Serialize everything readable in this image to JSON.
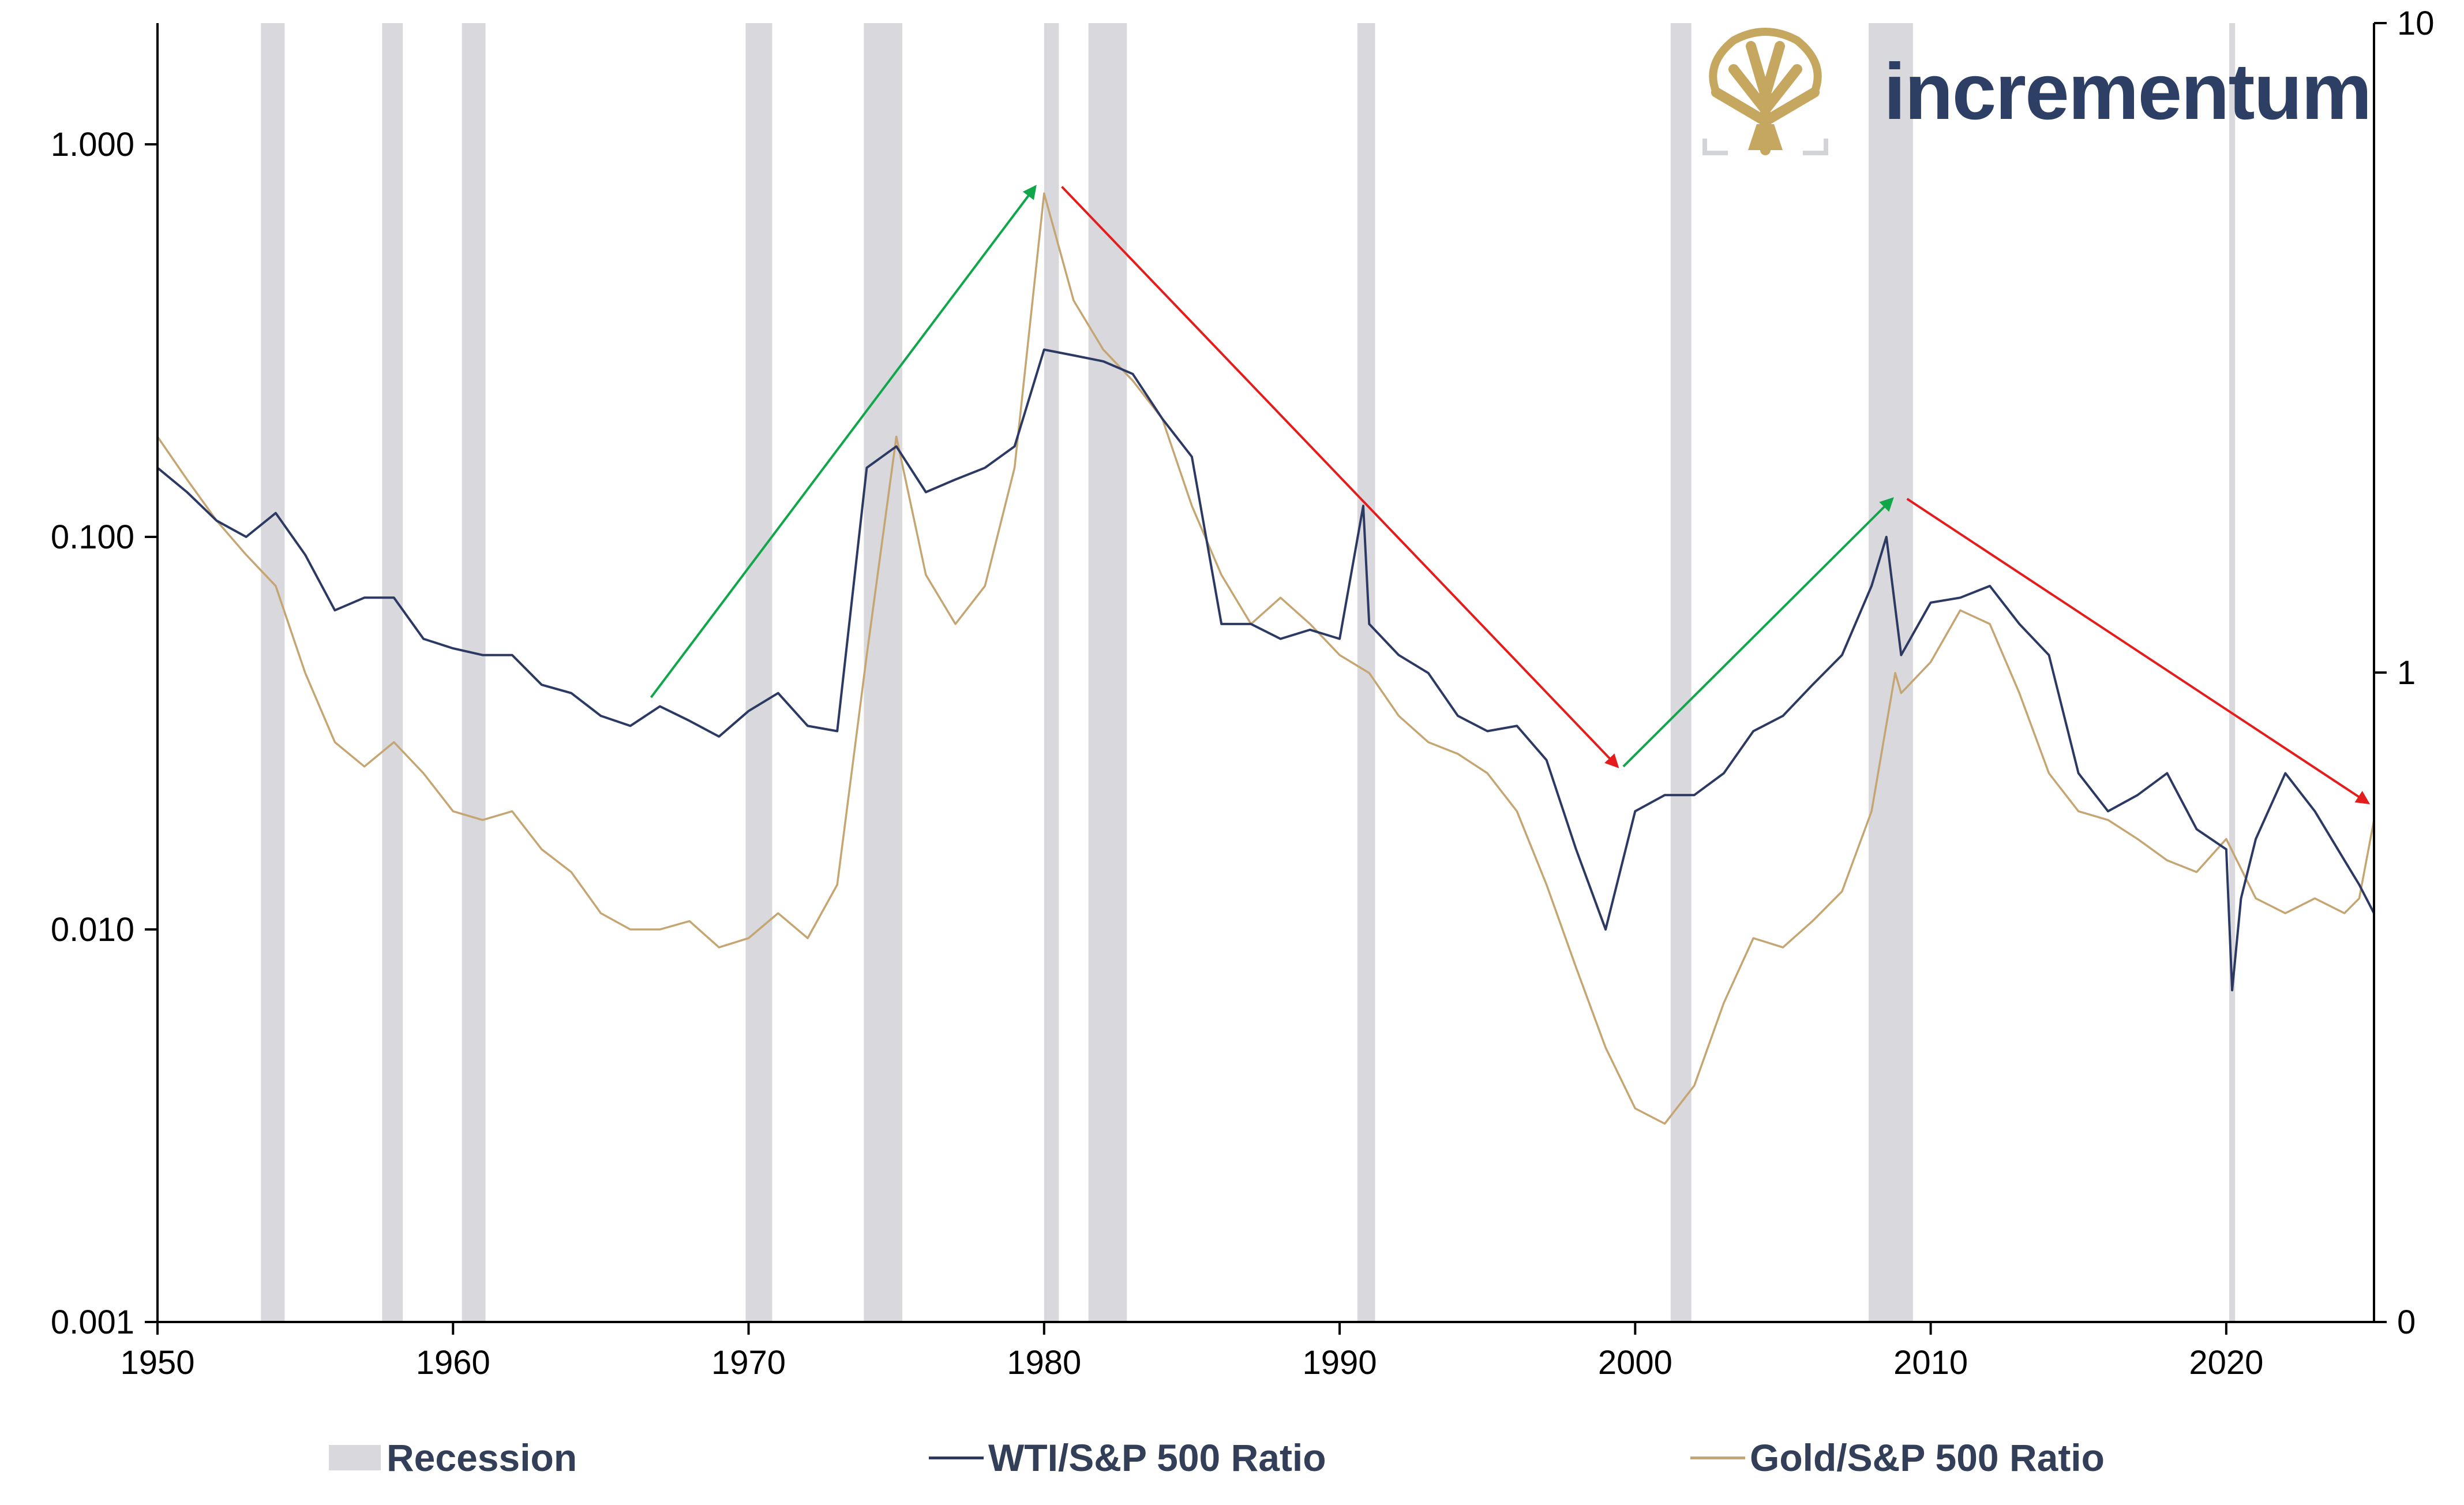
{
  "logo": {
    "text": "incrementum",
    "icon": "tree-icon"
  },
  "legend": {
    "recession": "Recession",
    "wti": "WTI/S&P 500 Ratio",
    "gold": "Gold/S&P 500 Ratio"
  },
  "colors": {
    "wti": "#2b3963",
    "gold": "#c5a572",
    "recession": "#d9d8dc",
    "up_arrow": "#10a64a",
    "down_arrow": "#e51c1c",
    "brand_gold": "#c6a760",
    "brand_navy": "#2e3f66"
  },
  "chart_data": {
    "type": "line",
    "x_axis": {
      "range": [
        1950,
        2025
      ],
      "tick_labels": [
        "1950",
        "1960",
        "1970",
        "1980",
        "1990",
        "2000",
        "2010",
        "2020"
      ]
    },
    "y_left": {
      "scale": "log",
      "range": [
        0.001,
        2
      ],
      "tick_labels": [
        "0.001",
        "0.010",
        "0.100",
        "1.000"
      ]
    },
    "y_right": {
      "scale": "log",
      "tick_labels": [
        "0",
        "1",
        "10"
      ]
    },
    "grid": false,
    "legend_position": "bottom",
    "recessions": [
      [
        1953.5,
        1954.3
      ],
      [
        1957.6,
        1958.3
      ],
      [
        1960.3,
        1961.1
      ],
      [
        1969.9,
        1970.8
      ],
      [
        1973.9,
        1975.2
      ],
      [
        1980.0,
        1980.5
      ],
      [
        1981.5,
        1982.8
      ],
      [
        1990.6,
        1991.2
      ],
      [
        2001.2,
        2001.9
      ],
      [
        2007.9,
        2009.4
      ],
      [
        2020.1,
        2020.3
      ]
    ],
    "series": [
      {
        "name": "WTI/S&P 500 Ratio",
        "axis": "left",
        "points": [
          [
            1950,
            0.15
          ],
          [
            1951,
            0.13
          ],
          [
            1952,
            0.11
          ],
          [
            1953,
            0.1
          ],
          [
            1954,
            0.115
          ],
          [
            1955,
            0.09
          ],
          [
            1956,
            0.065
          ],
          [
            1957,
            0.07
          ],
          [
            1958,
            0.07
          ],
          [
            1959,
            0.055
          ],
          [
            1960,
            0.052
          ],
          [
            1961,
            0.05
          ],
          [
            1962,
            0.05
          ],
          [
            1963,
            0.042
          ],
          [
            1964,
            0.04
          ],
          [
            1965,
            0.035
          ],
          [
            1966,
            0.033
          ],
          [
            1967,
            0.037
          ],
          [
            1968,
            0.034
          ],
          [
            1969,
            0.031
          ],
          [
            1970,
            0.036
          ],
          [
            1971,
            0.04
          ],
          [
            1972,
            0.033
          ],
          [
            1973,
            0.032
          ],
          [
            1974,
            0.15
          ],
          [
            1975,
            0.17
          ],
          [
            1976,
            0.13
          ],
          [
            1977,
            0.14
          ],
          [
            1978,
            0.15
          ],
          [
            1979,
            0.17
          ],
          [
            1980,
            0.3
          ],
          [
            1981,
            0.29
          ],
          [
            1982,
            0.28
          ],
          [
            1983,
            0.26
          ],
          [
            1984,
            0.2
          ],
          [
            1985,
            0.16
          ],
          [
            1986,
            0.06
          ],
          [
            1987,
            0.06
          ],
          [
            1988,
            0.055
          ],
          [
            1989,
            0.058
          ],
          [
            1990,
            0.055
          ],
          [
            1990.8,
            0.12
          ],
          [
            1991,
            0.06
          ],
          [
            1992,
            0.05
          ],
          [
            1993,
            0.045
          ],
          [
            1994,
            0.035
          ],
          [
            1995,
            0.032
          ],
          [
            1996,
            0.033
          ],
          [
            1997,
            0.027
          ],
          [
            1998,
            0.016
          ],
          [
            1999,
            0.01
          ],
          [
            2000,
            0.02
          ],
          [
            2001,
            0.022
          ],
          [
            2002,
            0.022
          ],
          [
            2003,
            0.025
          ],
          [
            2004,
            0.032
          ],
          [
            2005,
            0.035
          ],
          [
            2006,
            0.042
          ],
          [
            2007,
            0.05
          ],
          [
            2008,
            0.075
          ],
          [
            2008.5,
            0.1
          ],
          [
            2009,
            0.05
          ],
          [
            2010,
            0.068
          ],
          [
            2011,
            0.07
          ],
          [
            2012,
            0.075
          ],
          [
            2013,
            0.06
          ],
          [
            2014,
            0.05
          ],
          [
            2015,
            0.025
          ],
          [
            2016,
            0.02
          ],
          [
            2017,
            0.022
          ],
          [
            2018,
            0.025
          ],
          [
            2019,
            0.018
          ],
          [
            2020,
            0.016
          ],
          [
            2020.2,
            0.007
          ],
          [
            2020.5,
            0.012
          ],
          [
            2021,
            0.017
          ],
          [
            2022,
            0.025
          ],
          [
            2023,
            0.02
          ],
          [
            2024,
            0.015
          ],
          [
            2024.5,
            0.013
          ],
          [
            2025,
            0.011
          ]
        ]
      },
      {
        "name": "Gold/S&P 500 Ratio",
        "axis": "left",
        "points": [
          [
            1950,
            0.18
          ],
          [
            1951,
            0.14
          ],
          [
            1952,
            0.11
          ],
          [
            1953,
            0.09
          ],
          [
            1954,
            0.075
          ],
          [
            1955,
            0.045
          ],
          [
            1956,
            0.03
          ],
          [
            1957,
            0.026
          ],
          [
            1958,
            0.03
          ],
          [
            1959,
            0.025
          ],
          [
            1960,
            0.02
          ],
          [
            1961,
            0.019
          ],
          [
            1962,
            0.02
          ],
          [
            1963,
            0.016
          ],
          [
            1964,
            0.014
          ],
          [
            1965,
            0.011
          ],
          [
            1966,
            0.01
          ],
          [
            1967,
            0.01
          ],
          [
            1968,
            0.0105
          ],
          [
            1969,
            0.009
          ],
          [
            1970,
            0.0095
          ],
          [
            1971,
            0.011
          ],
          [
            1972,
            0.0095
          ],
          [
            1973,
            0.013
          ],
          [
            1974,
            0.05
          ],
          [
            1975,
            0.18
          ],
          [
            1976,
            0.08
          ],
          [
            1977,
            0.06
          ],
          [
            1978,
            0.075
          ],
          [
            1979,
            0.15
          ],
          [
            1980,
            0.75
          ],
          [
            1981,
            0.4
          ],
          [
            1982,
            0.3
          ],
          [
            1983,
            0.25
          ],
          [
            1984,
            0.2
          ],
          [
            1985,
            0.12
          ],
          [
            1986,
            0.08
          ],
          [
            1987,
            0.06
          ],
          [
            1988,
            0.07
          ],
          [
            1989,
            0.06
          ],
          [
            1990,
            0.05
          ],
          [
            1991,
            0.045
          ],
          [
            1992,
            0.035
          ],
          [
            1993,
            0.03
          ],
          [
            1994,
            0.028
          ],
          [
            1995,
            0.025
          ],
          [
            1996,
            0.02
          ],
          [
            1997,
            0.013
          ],
          [
            1998,
            0.008
          ],
          [
            1999,
            0.005
          ],
          [
            2000,
            0.0035
          ],
          [
            2001,
            0.0032
          ],
          [
            2002,
            0.004
          ],
          [
            2003,
            0.0065
          ],
          [
            2004,
            0.0095
          ],
          [
            2005,
            0.009
          ],
          [
            2006,
            0.0105
          ],
          [
            2007,
            0.0125
          ],
          [
            2008,
            0.02
          ],
          [
            2008.8,
            0.045
          ],
          [
            2009,
            0.04
          ],
          [
            2010,
            0.048
          ],
          [
            2011,
            0.065
          ],
          [
            2012,
            0.06
          ],
          [
            2013,
            0.04
          ],
          [
            2014,
            0.025
          ],
          [
            2015,
            0.02
          ],
          [
            2016,
            0.019
          ],
          [
            2017,
            0.017
          ],
          [
            2018,
            0.015
          ],
          [
            2019,
            0.014
          ],
          [
            2020,
            0.017
          ],
          [
            2021,
            0.012
          ],
          [
            2022,
            0.011
          ],
          [
            2023,
            0.012
          ],
          [
            2024,
            0.011
          ],
          [
            2024.5,
            0.012
          ],
          [
            2025,
            0.019
          ]
        ]
      }
    ],
    "annotations": [
      {
        "type": "arrow",
        "direction": "up",
        "color": "green",
        "from": [
          1966.7,
          0.039
        ],
        "to": [
          1979.7,
          0.78
        ]
      },
      {
        "type": "arrow",
        "direction": "down",
        "color": "red",
        "from": [
          1980.6,
          0.78
        ],
        "to": [
          1999.4,
          0.026
        ]
      },
      {
        "type": "arrow",
        "direction": "up",
        "color": "green",
        "from": [
          1999.6,
          0.026
        ],
        "to": [
          2008.7,
          0.125
        ]
      },
      {
        "type": "arrow",
        "direction": "down",
        "color": "red",
        "from": [
          2009.2,
          0.125
        ],
        "to": [
          2024.8,
          0.021
        ]
      }
    ]
  }
}
